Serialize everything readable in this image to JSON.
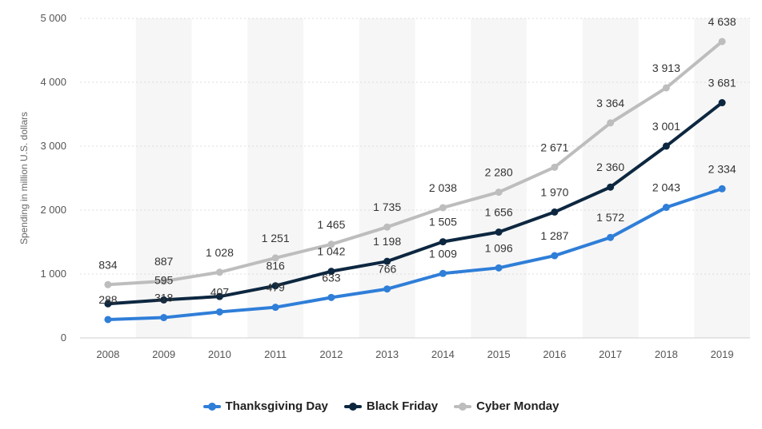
{
  "chart_data": {
    "type": "line",
    "title": "",
    "xlabel": "",
    "ylabel": "Spending in million U.S. dollars",
    "ylim": [
      0,
      5000
    ],
    "yticks": [
      0,
      1000,
      2000,
      3000,
      4000,
      5000
    ],
    "ytick_labels": [
      "0",
      "1 000",
      "2 000",
      "3 000",
      "4 000",
      "5 000"
    ],
    "categories": [
      "2008",
      "2009",
      "2010",
      "2011",
      "2012",
      "2013",
      "2014",
      "2015",
      "2016",
      "2017",
      "2018",
      "2019"
    ],
    "grid": true,
    "legend_position": "bottom",
    "series": [
      {
        "name": "Thanksgiving Day",
        "color": "#2f7ed8",
        "values": [
          288,
          318,
          407,
          479,
          633,
          766,
          1009,
          1096,
          1287,
          1572,
          2043,
          2334
        ],
        "labels": [
          "288",
          "318",
          "407",
          "479",
          "633",
          "766",
          "1 009",
          "1 096",
          "1 287",
          "1 572",
          "2 043",
          "2 334"
        ]
      },
      {
        "name": "Black Friday",
        "color": "#0d2740",
        "values": [
          534,
          595,
          648,
          816,
          1042,
          1198,
          1505,
          1656,
          1970,
          2360,
          3001,
          3681
        ],
        "labels": [
          "",
          "595",
          "",
          "816",
          "1 042",
          "1 198",
          "1 505",
          "1 656",
          "1 970",
          "2 360",
          "3 001",
          "3 681"
        ]
      },
      {
        "name": "Cyber Monday",
        "color": "#bdbdbd",
        "values": [
          834,
          887,
          1028,
          1251,
          1465,
          1735,
          2038,
          2280,
          2671,
          3364,
          3913,
          4638
        ],
        "labels": [
          "834",
          "887",
          "1 028",
          "1 251",
          "1 465",
          "1 735",
          "2 038",
          "2 280",
          "2 671",
          "3 364",
          "3 913",
          "4 638"
        ]
      }
    ]
  }
}
